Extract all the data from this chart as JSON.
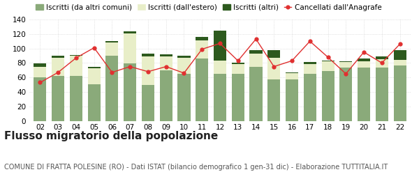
{
  "years": [
    "02",
    "03",
    "04",
    "05",
    "06",
    "07",
    "08",
    "09",
    "10",
    "11",
    "12",
    "13",
    "14",
    "15",
    "16",
    "17",
    "18",
    "19",
    "20",
    "21",
    "22"
  ],
  "iscritti_comuni": [
    60,
    62,
    62,
    51,
    90,
    79,
    50,
    70,
    65,
    86,
    65,
    65,
    75,
    57,
    57,
    65,
    69,
    74,
    74,
    74,
    77
  ],
  "iscritti_estero": [
    15,
    25,
    28,
    22,
    18,
    42,
    39,
    19,
    22,
    25,
    18,
    13,
    18,
    30,
    9,
    13,
    13,
    7,
    8,
    11,
    7
  ],
  "iscritti_altri": [
    4,
    3,
    1,
    2,
    2,
    3,
    4,
    3,
    3,
    5,
    42,
    2,
    5,
    11,
    1,
    3,
    1,
    1,
    4,
    4,
    14
  ],
  "cancellati": [
    53,
    67,
    87,
    101,
    67,
    75,
    68,
    75,
    66,
    99,
    107,
    83,
    113,
    75,
    83,
    110,
    88,
    65,
    95,
    80,
    106
  ],
  "color_comuni": "#8aaa7a",
  "color_estero": "#e8eec8",
  "color_altri": "#2d5a1e",
  "color_cancellati": "#e03030",
  "title": "Flusso migratorio della popolazione",
  "subtitle": "COMUNE DI FRATTA POLESINE (RO) - Dati ISTAT (bilancio demografico 1 gen-31 dic) - Elaborazione TUTTITALIA.IT",
  "legend_labels": [
    "Iscritti (da altri comuni)",
    "Iscritti (dall'estero)",
    "Iscritti (altri)",
    "Cancellati dall'Anagrafe"
  ],
  "ylim": [
    0,
    140
  ],
  "yticks": [
    0,
    20,
    40,
    60,
    80,
    100,
    120,
    140
  ],
  "title_fontsize": 11,
  "subtitle_fontsize": 7,
  "legend_fontsize": 7.5,
  "tick_fontsize": 7.5
}
